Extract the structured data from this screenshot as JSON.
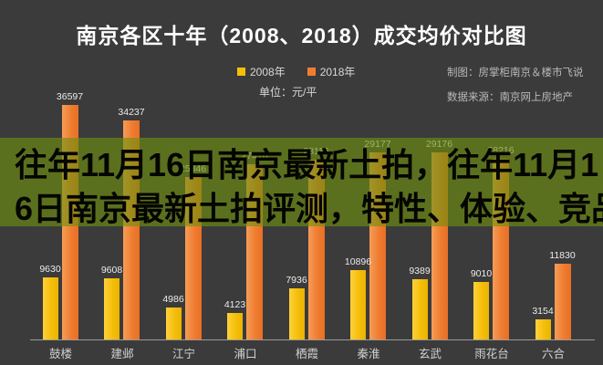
{
  "title": "南京各区十年（2008、2018）成交均价对比图",
  "legend": {
    "series_2008_label": "2008年",
    "series_2018_label": "2018年",
    "unit_label": "单位：元/平",
    "color_2008": "#F5BE0B",
    "color_2018": "#EF7D31"
  },
  "credits": {
    "maker": "制图：房掌柜南京＆楼市飞说",
    "source": "数据来源：南京网上房地产"
  },
  "overlay_banner": {
    "line1": "往年11月16日南京最新土拍，往年11月1",
    "line2": "6日南京最新土拍评测，特性、体验、竞品",
    "background_color": "rgba(111,144,15,0.63)",
    "text_color": "#050500"
  },
  "chart_data": {
    "type": "bar",
    "title": "南京各区十年（2008、2018）成交均价对比图",
    "unit": "元/平",
    "categories": [
      "鼓楼",
      "建邺",
      "江宁",
      "浦口",
      "栖霞",
      "秦淮",
      "玄武",
      "雨花台",
      "六合"
    ],
    "series": [
      {
        "name": "2008年",
        "color": "#F5BE0B",
        "values": [
          9630,
          9608,
          4986,
          4123,
          7936,
          10896,
          9389,
          9010,
          3154
        ]
      },
      {
        "name": "2018年",
        "color": "#EF7D31",
        "values": [
          36597,
          34237,
          25346,
          27416,
          28116,
          29177,
          29176,
          28216,
          11830
        ]
      }
    ],
    "data_labels": "shown above each bar",
    "obscured_labels_note": "2018 values for 江宁/浦口/雨花台 are hidden behind the banner overlay; estimated from bar heights and partial digits",
    "ylim": [
      0,
      40000
    ],
    "grid": false,
    "legend_position": "top-center",
    "background_color": "#3b3b3b"
  }
}
